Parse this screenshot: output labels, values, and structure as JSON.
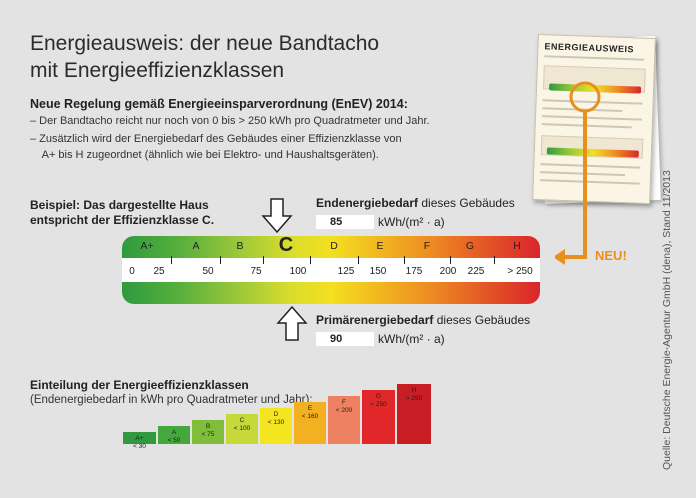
{
  "title_line1": "Energieausweis: der neue Bandtacho",
  "title_line2": "mit Energieeffizienzklassen",
  "subtitle": "Neue Regelung gemäß Energieeinsparverordnung (EnEV) 2014:",
  "bullets": [
    "–  Der Bandtacho reicht nur noch von 0 bis  > 250 kWh pro Quadratmeter und Jahr.",
    "–  Zusätzlich wird der Energiebedarf des Gebäudes einer Effizienzklasse von",
    "    A+ bis H zugeordnet (ähnlich wie bei Elektro- und Haushaltsgeräten)."
  ],
  "example": {
    "line1": "Beispiel: Das dargestellte Haus",
    "line2": "entspricht der Effizienzklasse C."
  },
  "endenergie": {
    "label_bold": "Endenergiebedarf",
    "label_rest": " dieses Gebäudes",
    "value": "85",
    "unit": "kWh/(m² · a)"
  },
  "primaerenergie": {
    "label_bold": "Primärenergiebedarf",
    "label_rest": " dieses Gebäudes",
    "value": "90",
    "unit": "kWh/(m² · a)"
  },
  "tacho": {
    "classes": [
      "A+",
      "A",
      "B",
      "C",
      "D",
      "E",
      "F",
      "G",
      "H"
    ],
    "highlight": "C",
    "scale": [
      "0",
      "25",
      "50",
      "75",
      "100",
      "125",
      "150",
      "175",
      "200",
      "225",
      "> 250"
    ]
  },
  "document": {
    "title": "ENERGIEAUSWEIS"
  },
  "neu_label": "NEU!",
  "einteilung": {
    "title": "Einteilung der Energieeffizienzklassen",
    "subtitle": "(Endenergiebedarf in kWh pro Quadratmeter  und Jahr):",
    "steps": [
      {
        "cls": "A+",
        "range": "< 30",
        "color": "#2f9a3e"
      },
      {
        "cls": "A",
        "range": "< 50",
        "color": "#45a83c"
      },
      {
        "cls": "B",
        "range": "< 75",
        "color": "#7fbd3a"
      },
      {
        "cls": "C",
        "range": "< 100",
        "color": "#c6d83a"
      },
      {
        "cls": "D",
        "range": "< 130",
        "color": "#f3e620"
      },
      {
        "cls": "E",
        "range": "< 160",
        "color": "#f3b020"
      },
      {
        "cls": "F",
        "range": "< 200",
        "color": "#ee8161"
      },
      {
        "cls": "G",
        "range": "< 250",
        "color": "#e2272b"
      },
      {
        "cls": "H",
        "range": "> 250",
        "color": "#c81d25"
      }
    ]
  },
  "source": "Quelle: Deutsche Energie-Agentur GmbH (dena), Stand 11/2013",
  "colors": {
    "accent_orange": "#e8901e"
  }
}
